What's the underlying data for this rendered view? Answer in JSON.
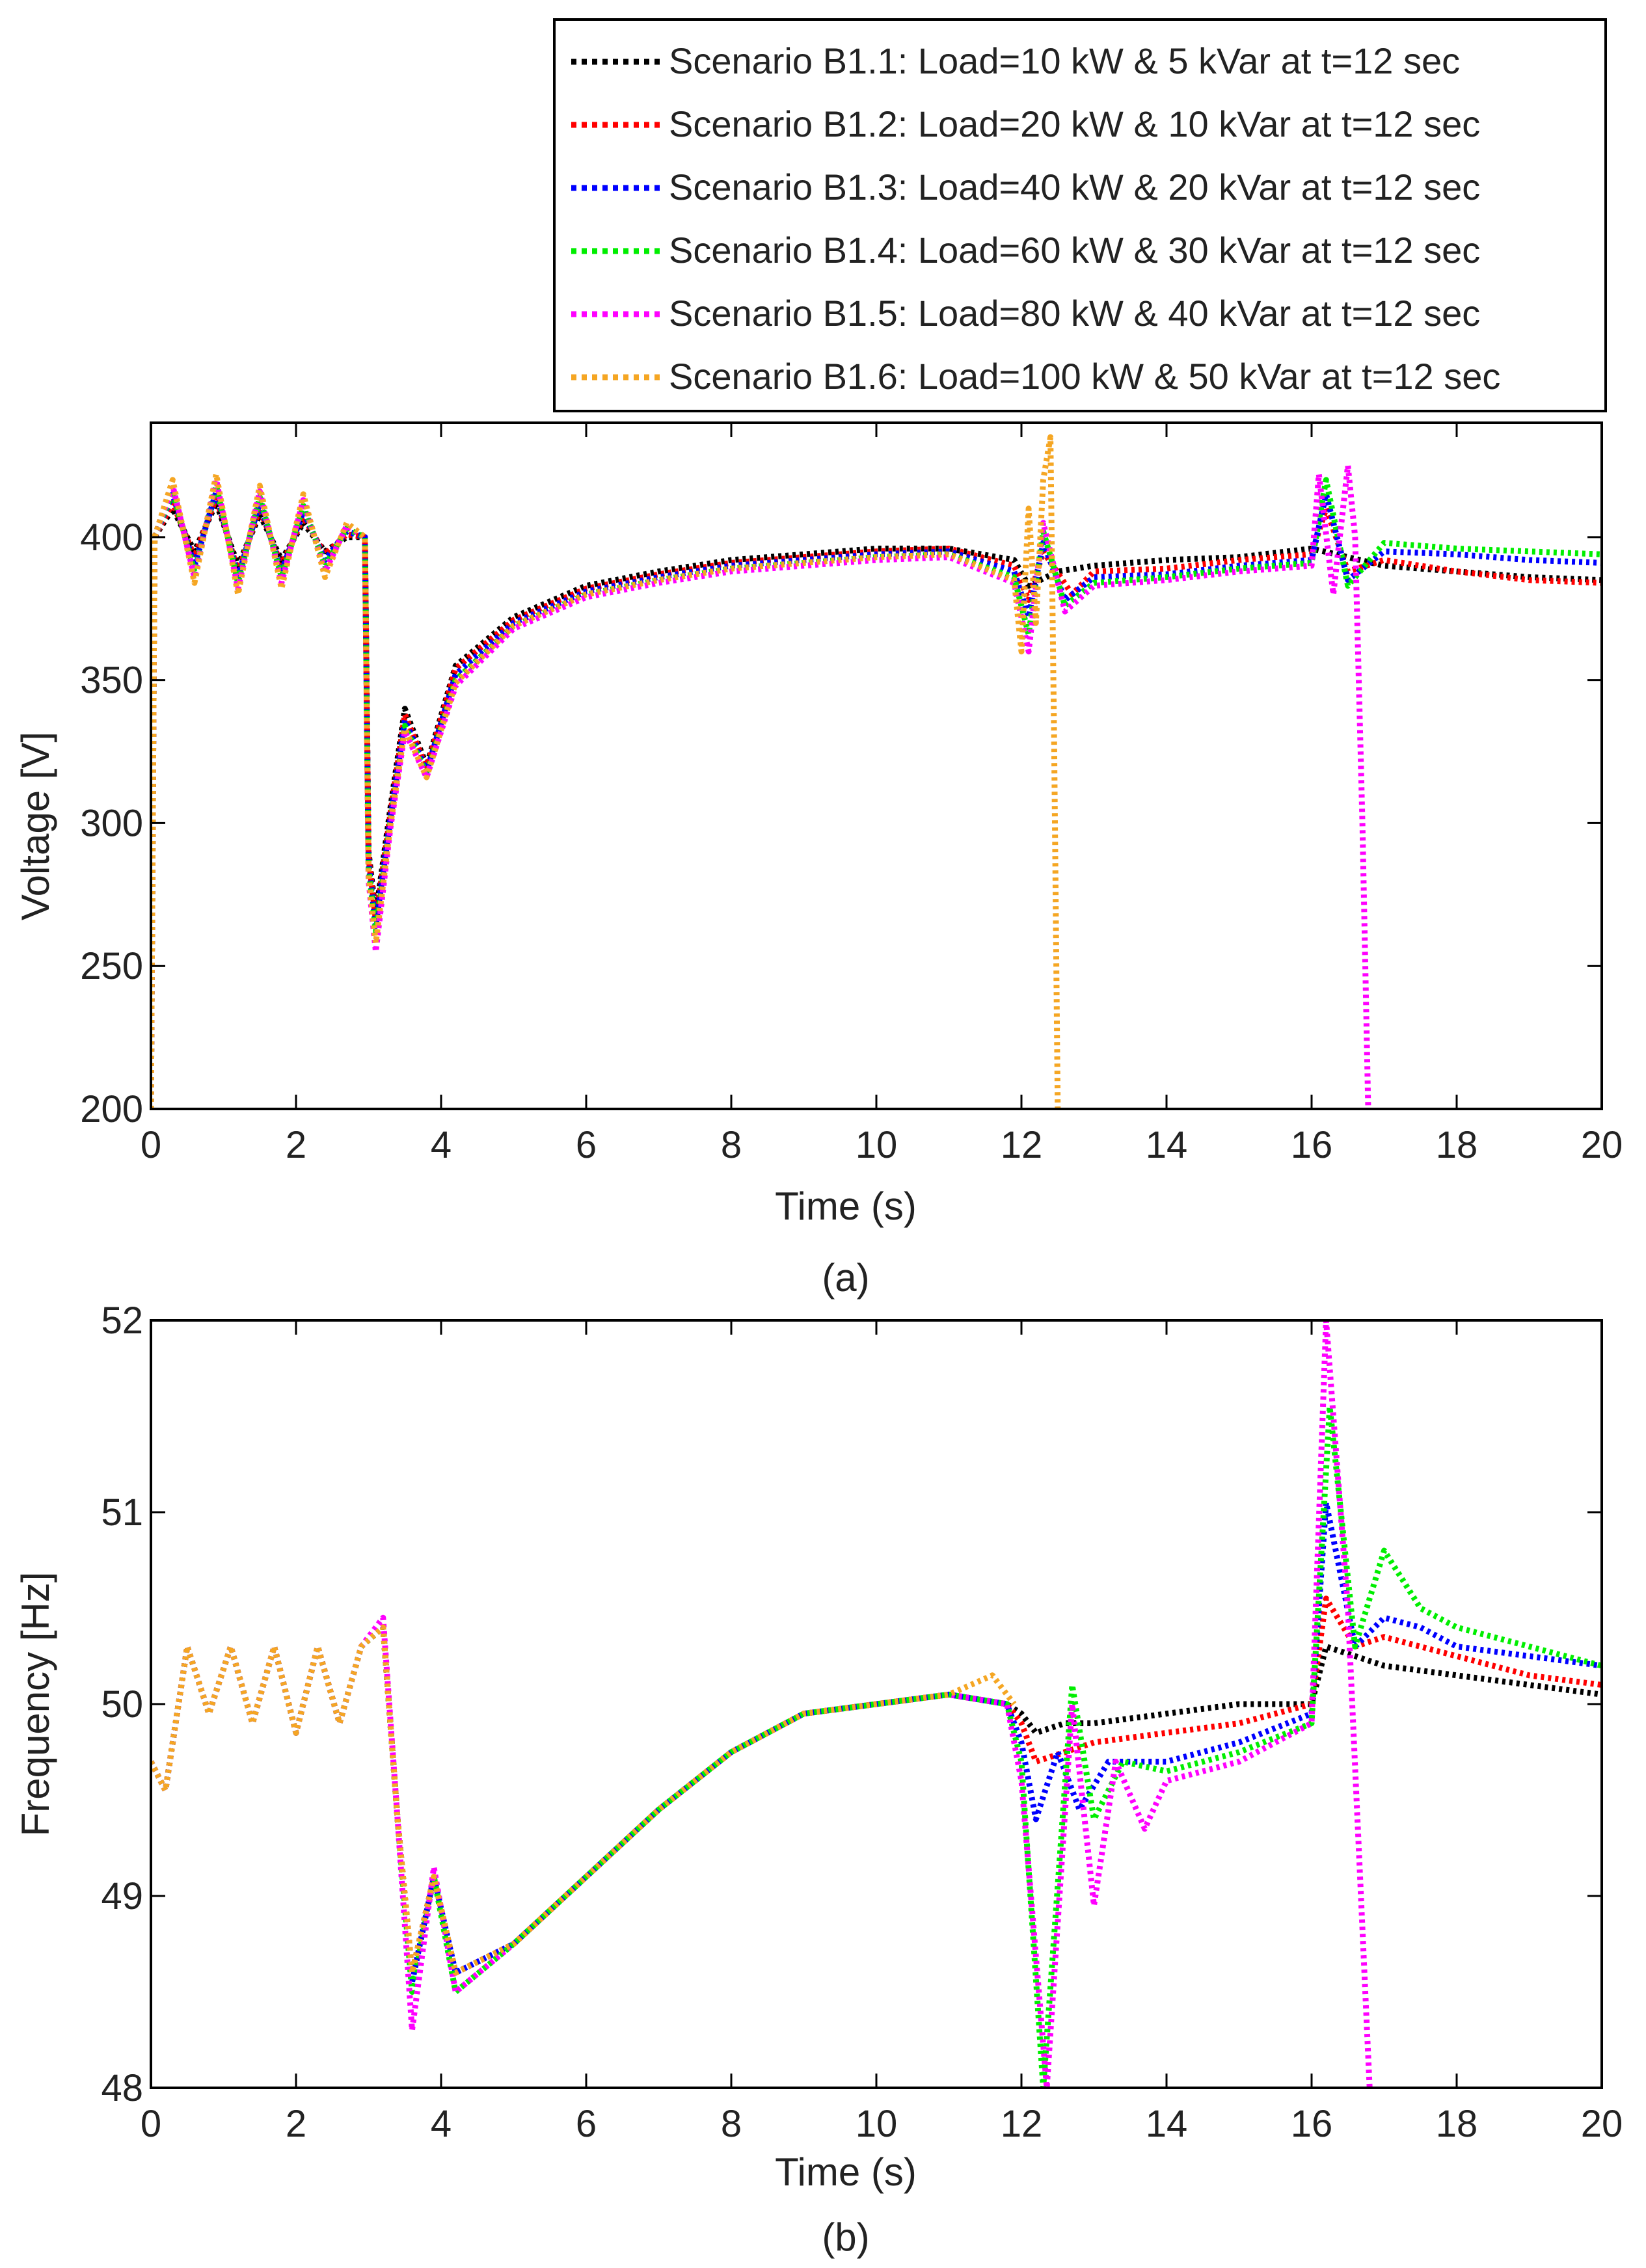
{
  "legend": {
    "entries": [
      {
        "label": "Scenario B1.1: Load=10 kW & 5 kVar at t=12 sec",
        "color": "#000000"
      },
      {
        "label": "Scenario B1.2: Load=20 kW & 10 kVar at t=12 sec",
        "color": "#ff0000"
      },
      {
        "label": "Scenario B1.3: Load=40 kW & 20 kVar at t=12 sec",
        "color": "#0000ff"
      },
      {
        "label": "Scenario B1.4: Load=60 kW & 30 kVar at t=12 sec",
        "color": "#00ee00"
      },
      {
        "label": "Scenario B1.5: Load=80 kW & 40 kVar at t=12 sec",
        "color": "#ff00ff"
      },
      {
        "label": "Scenario B1.6: Load=100 kW & 50 kVar at t=12 sec",
        "color": "#f5a623"
      }
    ]
  },
  "chart_data": [
    {
      "type": "line",
      "panel": "(a)",
      "xlabel": "Time (s)",
      "ylabel": "Voltage [V]",
      "xlim": [
        0,
        20
      ],
      "ylim": [
        200,
        440
      ],
      "xticks": [
        0,
        2,
        4,
        6,
        8,
        10,
        12,
        14,
        16,
        18,
        20
      ],
      "yticks": [
        200,
        250,
        300,
        350,
        400
      ],
      "line_style": "dotted",
      "series": [
        {
          "name": "Scenario B1.1",
          "color": "#000000",
          "x": [
            0,
            0.05,
            0.3,
            0.6,
            0.9,
            1.2,
            1.5,
            1.8,
            2.1,
            2.4,
            2.7,
            2.95,
            3.0,
            3.1,
            3.3,
            3.5,
            3.8,
            4.2,
            5,
            6,
            7,
            8,
            9,
            10,
            11,
            11.9,
            12.1,
            12.5,
            13,
            14,
            15,
            16,
            17,
            18,
            19,
            20
          ],
          "y": [
            200,
            400,
            410,
            395,
            412,
            390,
            408,
            392,
            405,
            395,
            400,
            400,
            290,
            268,
            305,
            340,
            320,
            355,
            372,
            383,
            388,
            392,
            394,
            396,
            396,
            392,
            383,
            388,
            390,
            392,
            393,
            396,
            390,
            388,
            386,
            385
          ]
        },
        {
          "name": "Scenario B1.2",
          "color": "#ff0000",
          "x": [
            0,
            0.05,
            0.3,
            0.6,
            0.9,
            1.2,
            1.5,
            1.8,
            2.1,
            2.4,
            2.7,
            2.95,
            3.0,
            3.1,
            3.3,
            3.5,
            3.8,
            4.2,
            5,
            6,
            7,
            8,
            9,
            10,
            11,
            11.9,
            12.1,
            12.3,
            12.7,
            13,
            14,
            15,
            16,
            16.2,
            16.5,
            17,
            18,
            19,
            20
          ],
          "y": [
            200,
            400,
            412,
            393,
            414,
            388,
            410,
            390,
            407,
            394,
            401,
            400,
            288,
            266,
            303,
            338,
            319,
            354,
            371,
            382,
            387,
            391,
            393,
            395,
            396,
            390,
            378,
            395,
            380,
            388,
            389,
            392,
            394,
            410,
            388,
            392,
            388,
            385,
            384
          ]
        },
        {
          "name": "Scenario B1.3",
          "color": "#0000ff",
          "x": [
            0,
            0.05,
            0.3,
            0.6,
            0.9,
            1.2,
            1.5,
            1.8,
            2.1,
            2.4,
            2.7,
            2.95,
            3.0,
            3.1,
            3.3,
            3.5,
            3.8,
            4.2,
            5,
            6,
            7,
            8,
            9,
            10,
            11,
            11.9,
            12.1,
            12.3,
            12.6,
            13,
            14,
            15,
            16,
            16.2,
            16.5,
            17,
            18,
            19,
            20
          ],
          "y": [
            200,
            400,
            415,
            390,
            416,
            386,
            412,
            388,
            409,
            392,
            402,
            400,
            286,
            264,
            301,
            336,
            318,
            352,
            370,
            381,
            386,
            390,
            392,
            394,
            395,
            388,
            372,
            398,
            378,
            386,
            387,
            390,
            392,
            415,
            385,
            395,
            394,
            392,
            391
          ]
        },
        {
          "name": "Scenario B1.4",
          "color": "#00ee00",
          "x": [
            0,
            0.05,
            0.3,
            0.6,
            0.9,
            1.2,
            1.5,
            1.8,
            2.1,
            2.4,
            2.7,
            2.95,
            3.0,
            3.1,
            3.3,
            3.5,
            3.8,
            4.2,
            5,
            6,
            7,
            8,
            9,
            10,
            11,
            11.9,
            12.1,
            12.3,
            12.6,
            13,
            14,
            15,
            16,
            16.2,
            16.5,
            17,
            18,
            19,
            20
          ],
          "y": [
            200,
            400,
            416,
            388,
            418,
            384,
            414,
            386,
            411,
            390,
            403,
            400,
            284,
            262,
            300,
            334,
            317,
            350,
            369,
            380,
            385,
            389,
            391,
            393,
            394,
            386,
            366,
            402,
            376,
            384,
            386,
            389,
            391,
            420,
            383,
            398,
            396,
            395,
            394
          ]
        },
        {
          "name": "Scenario B1.5",
          "color": "#ff00ff",
          "x": [
            0,
            0.05,
            0.3,
            0.6,
            0.9,
            1.2,
            1.5,
            1.8,
            2.1,
            2.4,
            2.7,
            2.95,
            3.0,
            3.1,
            3.3,
            3.5,
            3.8,
            4.2,
            5,
            6,
            7,
            8,
            9,
            10,
            11,
            11.9,
            12.1,
            12.3,
            12.6,
            13,
            14,
            15,
            16,
            16.1,
            16.3,
            16.5,
            16.6,
            16.7,
            16.78
          ],
          "y": [
            200,
            400,
            418,
            386,
            420,
            382,
            416,
            384,
            413,
            388,
            404,
            400,
            280,
            255,
            298,
            332,
            316,
            348,
            368,
            379,
            384,
            388,
            390,
            392,
            393,
            384,
            360,
            405,
            374,
            383,
            385,
            388,
            390,
            422,
            380,
            425,
            400,
            300,
            200
          ]
        },
        {
          "name": "Scenario B1.6",
          "color": "#f5a623",
          "x": [
            0,
            0.05,
            0.3,
            0.6,
            0.9,
            1.2,
            1.5,
            1.8,
            2.1,
            2.4,
            2.7,
            2.95,
            3.0,
            3.1,
            3.3,
            3.5,
            3.8,
            4.2,
            5,
            6,
            7,
            8,
            9,
            10,
            11,
            11.9,
            12.0,
            12.1,
            12.2,
            12.3,
            12.4,
            12.45,
            12.5
          ],
          "y": [
            200,
            400,
            420,
            384,
            422,
            380,
            418,
            382,
            415,
            386,
            405,
            400,
            282,
            258,
            299,
            333,
            316,
            349,
            369,
            380,
            385,
            389,
            391,
            393,
            394,
            385,
            360,
            410,
            370,
            420,
            435,
            330,
            200
          ]
        }
      ]
    },
    {
      "type": "line",
      "panel": "(b)",
      "xlabel": "Time (s)",
      "ylabel": "Frequency [Hz]",
      "xlim": [
        0,
        20
      ],
      "ylim": [
        48,
        52
      ],
      "xticks": [
        0,
        2,
        4,
        6,
        8,
        10,
        12,
        14,
        16,
        18,
        20
      ],
      "yticks": [
        48,
        49,
        50,
        51,
        52
      ],
      "line_style": "dotted",
      "series": [
        {
          "name": "Scenario B1.1",
          "color": "#000000",
          "x": [
            0,
            0.2,
            0.5,
            0.8,
            1.1,
            1.4,
            1.7,
            2.0,
            2.3,
            2.6,
            2.9,
            3.2,
            3.4,
            3.6,
            3.9,
            4.2,
            5,
            6,
            7,
            8,
            9,
            10,
            11,
            11.8,
            12.0,
            12.2,
            12.6,
            13,
            14,
            15,
            16,
            16.2,
            16.6,
            17,
            18,
            19,
            20
          ],
          "y": [
            49.7,
            49.55,
            50.3,
            49.95,
            50.3,
            49.9,
            50.3,
            49.85,
            50.3,
            49.9,
            50.3,
            50.4,
            49.4,
            48.6,
            49.1,
            48.6,
            48.75,
            49.1,
            49.45,
            49.75,
            49.95,
            50.0,
            50.05,
            50.0,
            49.95,
            49.85,
            49.9,
            49.9,
            49.95,
            50.0,
            50.0,
            50.3,
            50.25,
            50.2,
            50.15,
            50.1,
            50.05
          ]
        },
        {
          "name": "Scenario B1.2",
          "color": "#ff0000",
          "x": [
            0,
            0.2,
            0.5,
            0.8,
            1.1,
            1.4,
            1.7,
            2.0,
            2.3,
            2.6,
            2.9,
            3.2,
            3.4,
            3.6,
            3.9,
            4.2,
            5,
            6,
            7,
            8,
            9,
            10,
            11,
            11.8,
            12.0,
            12.2,
            12.6,
            13,
            14,
            15,
            16,
            16.2,
            16.6,
            17,
            18,
            19,
            20
          ],
          "y": [
            49.7,
            49.55,
            50.3,
            49.95,
            50.3,
            49.9,
            50.3,
            49.85,
            50.3,
            49.9,
            50.3,
            50.4,
            49.4,
            48.6,
            49.1,
            48.6,
            48.75,
            49.1,
            49.45,
            49.75,
            49.95,
            50.0,
            50.05,
            50.0,
            49.9,
            49.7,
            49.75,
            49.8,
            49.85,
            49.9,
            50.0,
            50.55,
            50.3,
            50.35,
            50.25,
            50.15,
            50.1
          ]
        },
        {
          "name": "Scenario B1.3",
          "color": "#0000ff",
          "x": [
            0,
            0.2,
            0.5,
            0.8,
            1.1,
            1.4,
            1.7,
            2.0,
            2.3,
            2.6,
            2.9,
            3.2,
            3.4,
            3.6,
            3.9,
            4.2,
            5,
            6,
            7,
            8,
            9,
            10,
            11,
            11.8,
            12.0,
            12.2,
            12.5,
            12.8,
            13.2,
            14,
            15,
            16,
            16.2,
            16.6,
            17,
            17.5,
            18,
            19,
            20
          ],
          "y": [
            49.7,
            49.55,
            50.3,
            49.95,
            50.3,
            49.9,
            50.3,
            49.85,
            50.3,
            49.9,
            50.3,
            50.4,
            49.4,
            48.55,
            49.1,
            48.6,
            48.75,
            49.1,
            49.45,
            49.75,
            49.95,
            50.0,
            50.05,
            50.0,
            49.8,
            49.4,
            49.75,
            49.45,
            49.7,
            49.7,
            49.8,
            49.95,
            51.05,
            50.3,
            50.45,
            50.4,
            50.3,
            50.25,
            50.2
          ]
        },
        {
          "name": "Scenario B1.4",
          "color": "#00ee00",
          "x": [
            0,
            0.2,
            0.5,
            0.8,
            1.1,
            1.4,
            1.7,
            2.0,
            2.3,
            2.6,
            2.9,
            3.2,
            3.4,
            3.6,
            3.9,
            4.2,
            5,
            6,
            7,
            8,
            9,
            10,
            11,
            11.8,
            12.0,
            12.3,
            12.7,
            13.0,
            13.4,
            14,
            15,
            16,
            16.25,
            16.6,
            17,
            17.5,
            18,
            19,
            20
          ],
          "y": [
            49.7,
            49.55,
            50.3,
            49.95,
            50.3,
            49.9,
            50.3,
            49.85,
            50.3,
            49.9,
            50.3,
            50.4,
            49.4,
            48.5,
            49.1,
            48.5,
            48.75,
            49.1,
            49.45,
            49.75,
            49.95,
            50.0,
            50.05,
            50.0,
            49.7,
            48.0,
            50.1,
            49.4,
            49.7,
            49.65,
            49.75,
            49.9,
            51.55,
            50.3,
            50.8,
            50.5,
            50.4,
            50.3,
            50.2
          ]
        },
        {
          "name": "Scenario B1.5",
          "color": "#ff00ff",
          "x": [
            0,
            0.2,
            0.5,
            0.8,
            1.1,
            1.4,
            1.7,
            2.0,
            2.3,
            2.6,
            2.9,
            3.2,
            3.4,
            3.6,
            3.9,
            4.2,
            5,
            6,
            7,
            8,
            9,
            10,
            11,
            11.8,
            12.0,
            12.35,
            12.7,
            13.0,
            13.3,
            13.7,
            14,
            15,
            16,
            16.2,
            16.5,
            16.8
          ],
          "y": [
            49.7,
            49.55,
            50.3,
            49.95,
            50.3,
            49.9,
            50.3,
            49.85,
            50.3,
            49.9,
            50.3,
            50.45,
            49.4,
            48.3,
            49.15,
            48.5,
            48.75,
            49.1,
            49.45,
            49.75,
            49.95,
            50.0,
            50.05,
            50.0,
            49.6,
            48.0,
            50.0,
            48.95,
            49.7,
            49.35,
            49.6,
            49.7,
            49.9,
            52.0,
            50.5,
            48.0
          ]
        },
        {
          "name": "Scenario B1.6",
          "color": "#f5a623",
          "x": [
            0,
            0.2,
            0.5,
            0.8,
            1.1,
            1.4,
            1.7,
            2.0,
            2.3,
            2.6,
            2.9,
            3.2,
            3.4,
            3.6,
            3.9,
            4.2,
            5,
            6,
            7,
            8,
            9,
            10,
            11,
            11.6,
            11.9
          ],
          "y": [
            49.7,
            49.55,
            50.3,
            49.95,
            50.3,
            49.9,
            50.3,
            49.85,
            50.3,
            49.9,
            50.3,
            50.4,
            49.4,
            48.6,
            49.1,
            48.6,
            48.75,
            49.1,
            49.45,
            49.75,
            49.95,
            50.0,
            50.05,
            50.15,
            50.0
          ]
        }
      ]
    }
  ]
}
